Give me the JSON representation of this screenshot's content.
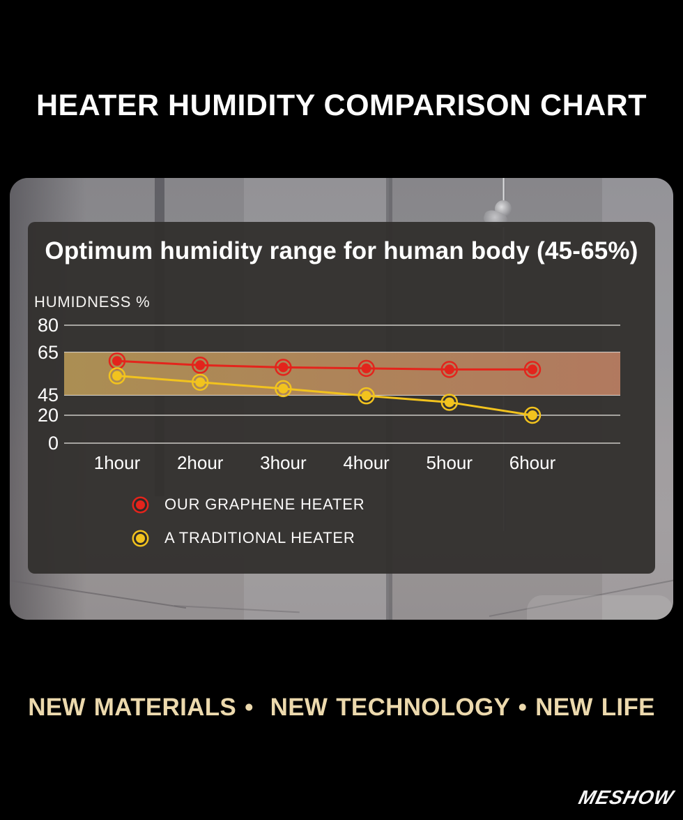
{
  "page": {
    "title": "HEATER HUMIDITY COMPARISON CHART",
    "tagline": "NEW MATERIALS •  NEW TECHNOLOGY • NEW LIFE",
    "brand": "MESHOW"
  },
  "panel": {
    "title": "Optimum humidity range for human body (45-65%)"
  },
  "chart_data": {
    "type": "line",
    "title": "Optimum humidity range for human body (45-65%)",
    "xlabel": "",
    "ylabel": "HUMIDNESS %",
    "categories": [
      "1hour",
      "2hour",
      "3hour",
      "4hour",
      "5hour",
      "6hour"
    ],
    "y_ticks": [
      0,
      20,
      45,
      65,
      80
    ],
    "ylim": [
      0,
      80
    ],
    "grid": true,
    "grid_color": "#ccc9c5",
    "legend_position": "bottom-left",
    "optimal_band": {
      "from": 45,
      "to": 65,
      "label": "Optimum humidity range for human body (45-65%)",
      "colors": [
        "#b59656",
        "#bc7f63"
      ]
    },
    "series": [
      {
        "name": "OUR GRAPHENE HEATER",
        "color": "#e3241c",
        "values": [
          61,
          59,
          58,
          57.5,
          57,
          57
        ]
      },
      {
        "name": "A TRADITIONAL HEATER",
        "color": "#f2c31e",
        "values": [
          54,
          51,
          48,
          44,
          36,
          20
        ]
      }
    ]
  },
  "colors": {
    "background": "#000000",
    "panel": "#322f2d",
    "tagline": "#ecd9ad",
    "text": "#ffffff"
  }
}
